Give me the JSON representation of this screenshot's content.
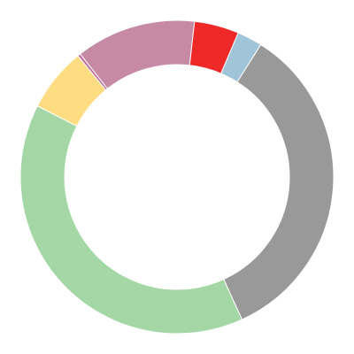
{
  "chart_data": {
    "type": "pie",
    "variant": "donut",
    "legend": "none",
    "title": "",
    "slices": [
      {
        "value": 2.6,
        "color": "#a0c4d8"
      },
      {
        "value": 34.2,
        "color": "#999999"
      },
      {
        "value": 39.3,
        "color": "#a4d7a5"
      },
      {
        "value": 6.6,
        "color": "#fedc82"
      },
      {
        "value": 0.3,
        "color": "#bf6a9b"
      },
      {
        "value": 12.4,
        "color": "#c68aa5"
      },
      {
        "value": 4.6,
        "color": "#ef2828"
      }
    ]
  }
}
